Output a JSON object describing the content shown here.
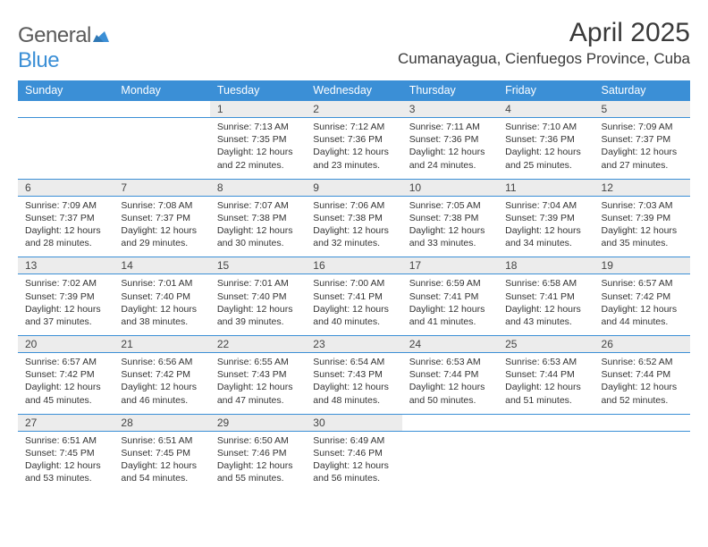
{
  "logo": {
    "word1": "General",
    "word2": "Blue"
  },
  "title": "April 2025",
  "location": "Cumanayagua, Cienfuegos Province, Cuba",
  "colors": {
    "accent": "#3b8fd6",
    "daynum_bg": "#ececec",
    "text": "#333333"
  },
  "day_headers": [
    "Sunday",
    "Monday",
    "Tuesday",
    "Wednesday",
    "Thursday",
    "Friday",
    "Saturday"
  ],
  "weeks": [
    [
      null,
      null,
      {
        "n": "1",
        "sr": "7:13 AM",
        "ss": "7:35 PM",
        "dl": "12 hours and 22 minutes."
      },
      {
        "n": "2",
        "sr": "7:12 AM",
        "ss": "7:36 PM",
        "dl": "12 hours and 23 minutes."
      },
      {
        "n": "3",
        "sr": "7:11 AM",
        "ss": "7:36 PM",
        "dl": "12 hours and 24 minutes."
      },
      {
        "n": "4",
        "sr": "7:10 AM",
        "ss": "7:36 PM",
        "dl": "12 hours and 25 minutes."
      },
      {
        "n": "5",
        "sr": "7:09 AM",
        "ss": "7:37 PM",
        "dl": "12 hours and 27 minutes."
      }
    ],
    [
      {
        "n": "6",
        "sr": "7:09 AM",
        "ss": "7:37 PM",
        "dl": "12 hours and 28 minutes."
      },
      {
        "n": "7",
        "sr": "7:08 AM",
        "ss": "7:37 PM",
        "dl": "12 hours and 29 minutes."
      },
      {
        "n": "8",
        "sr": "7:07 AM",
        "ss": "7:38 PM",
        "dl": "12 hours and 30 minutes."
      },
      {
        "n": "9",
        "sr": "7:06 AM",
        "ss": "7:38 PM",
        "dl": "12 hours and 32 minutes."
      },
      {
        "n": "10",
        "sr": "7:05 AM",
        "ss": "7:38 PM",
        "dl": "12 hours and 33 minutes."
      },
      {
        "n": "11",
        "sr": "7:04 AM",
        "ss": "7:39 PM",
        "dl": "12 hours and 34 minutes."
      },
      {
        "n": "12",
        "sr": "7:03 AM",
        "ss": "7:39 PM",
        "dl": "12 hours and 35 minutes."
      }
    ],
    [
      {
        "n": "13",
        "sr": "7:02 AM",
        "ss": "7:39 PM",
        "dl": "12 hours and 37 minutes."
      },
      {
        "n": "14",
        "sr": "7:01 AM",
        "ss": "7:40 PM",
        "dl": "12 hours and 38 minutes."
      },
      {
        "n": "15",
        "sr": "7:01 AM",
        "ss": "7:40 PM",
        "dl": "12 hours and 39 minutes."
      },
      {
        "n": "16",
        "sr": "7:00 AM",
        "ss": "7:41 PM",
        "dl": "12 hours and 40 minutes."
      },
      {
        "n": "17",
        "sr": "6:59 AM",
        "ss": "7:41 PM",
        "dl": "12 hours and 41 minutes."
      },
      {
        "n": "18",
        "sr": "6:58 AM",
        "ss": "7:41 PM",
        "dl": "12 hours and 43 minutes."
      },
      {
        "n": "19",
        "sr": "6:57 AM",
        "ss": "7:42 PM",
        "dl": "12 hours and 44 minutes."
      }
    ],
    [
      {
        "n": "20",
        "sr": "6:57 AM",
        "ss": "7:42 PM",
        "dl": "12 hours and 45 minutes."
      },
      {
        "n": "21",
        "sr": "6:56 AM",
        "ss": "7:42 PM",
        "dl": "12 hours and 46 minutes."
      },
      {
        "n": "22",
        "sr": "6:55 AM",
        "ss": "7:43 PM",
        "dl": "12 hours and 47 minutes."
      },
      {
        "n": "23",
        "sr": "6:54 AM",
        "ss": "7:43 PM",
        "dl": "12 hours and 48 minutes."
      },
      {
        "n": "24",
        "sr": "6:53 AM",
        "ss": "7:44 PM",
        "dl": "12 hours and 50 minutes."
      },
      {
        "n": "25",
        "sr": "6:53 AM",
        "ss": "7:44 PM",
        "dl": "12 hours and 51 minutes."
      },
      {
        "n": "26",
        "sr": "6:52 AM",
        "ss": "7:44 PM",
        "dl": "12 hours and 52 minutes."
      }
    ],
    [
      {
        "n": "27",
        "sr": "6:51 AM",
        "ss": "7:45 PM",
        "dl": "12 hours and 53 minutes."
      },
      {
        "n": "28",
        "sr": "6:51 AM",
        "ss": "7:45 PM",
        "dl": "12 hours and 54 minutes."
      },
      {
        "n": "29",
        "sr": "6:50 AM",
        "ss": "7:46 PM",
        "dl": "12 hours and 55 minutes."
      },
      {
        "n": "30",
        "sr": "6:49 AM",
        "ss": "7:46 PM",
        "dl": "12 hours and 56 minutes."
      },
      null,
      null,
      null
    ]
  ],
  "labels": {
    "sunrise": "Sunrise:",
    "sunset": "Sunset:",
    "daylight": "Daylight:"
  }
}
